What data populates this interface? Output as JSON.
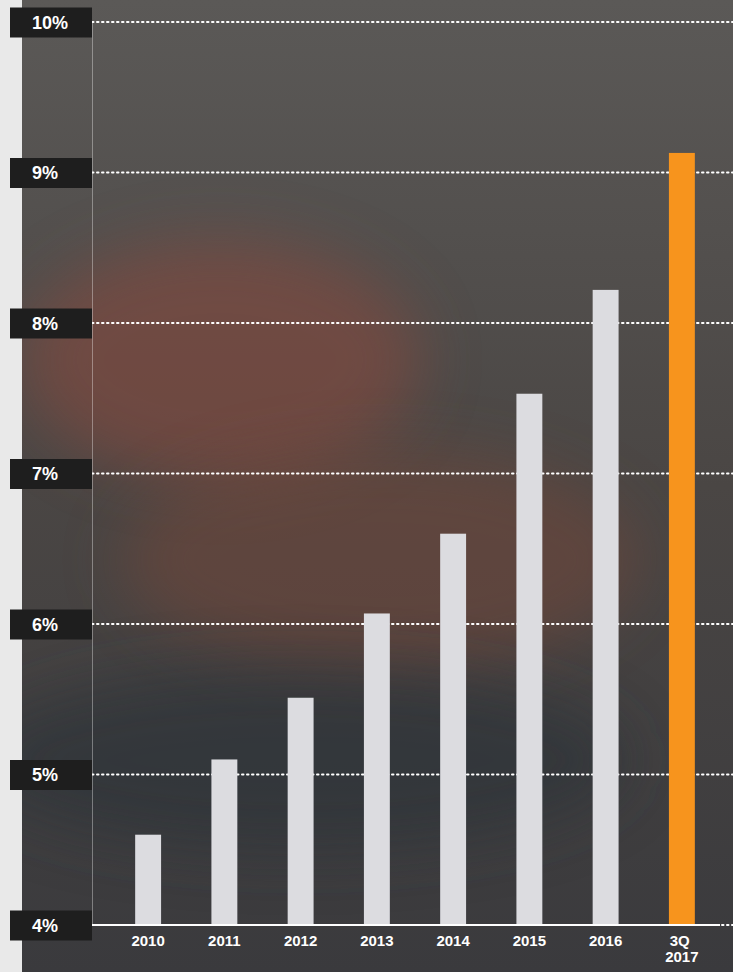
{
  "chart_data": {
    "type": "bar",
    "categories": [
      "2010",
      "2011",
      "2012",
      "2013",
      "2014",
      "2015",
      "2016",
      "3Q 2017"
    ],
    "values": [
      4.6,
      5.1,
      5.51,
      6.07,
      6.6,
      7.53,
      8.22,
      9.13
    ],
    "colors": [
      "#dcdce0",
      "#dcdce0",
      "#dcdce0",
      "#dcdce0",
      "#dcdce0",
      "#dcdce0",
      "#dcdce0",
      "#f7941d"
    ],
    "ylim": [
      4,
      10
    ],
    "yticks": [
      {
        "value": 4,
        "label": "4%"
      },
      {
        "value": 5,
        "label": "5%"
      },
      {
        "value": 6,
        "label": "6%"
      },
      {
        "value": 7,
        "label": "7%"
      },
      {
        "value": 8,
        "label": "8%"
      },
      {
        "value": 9,
        "label": "9%"
      },
      {
        "value": 10,
        "label": "10%"
      }
    ],
    "grid": true
  }
}
